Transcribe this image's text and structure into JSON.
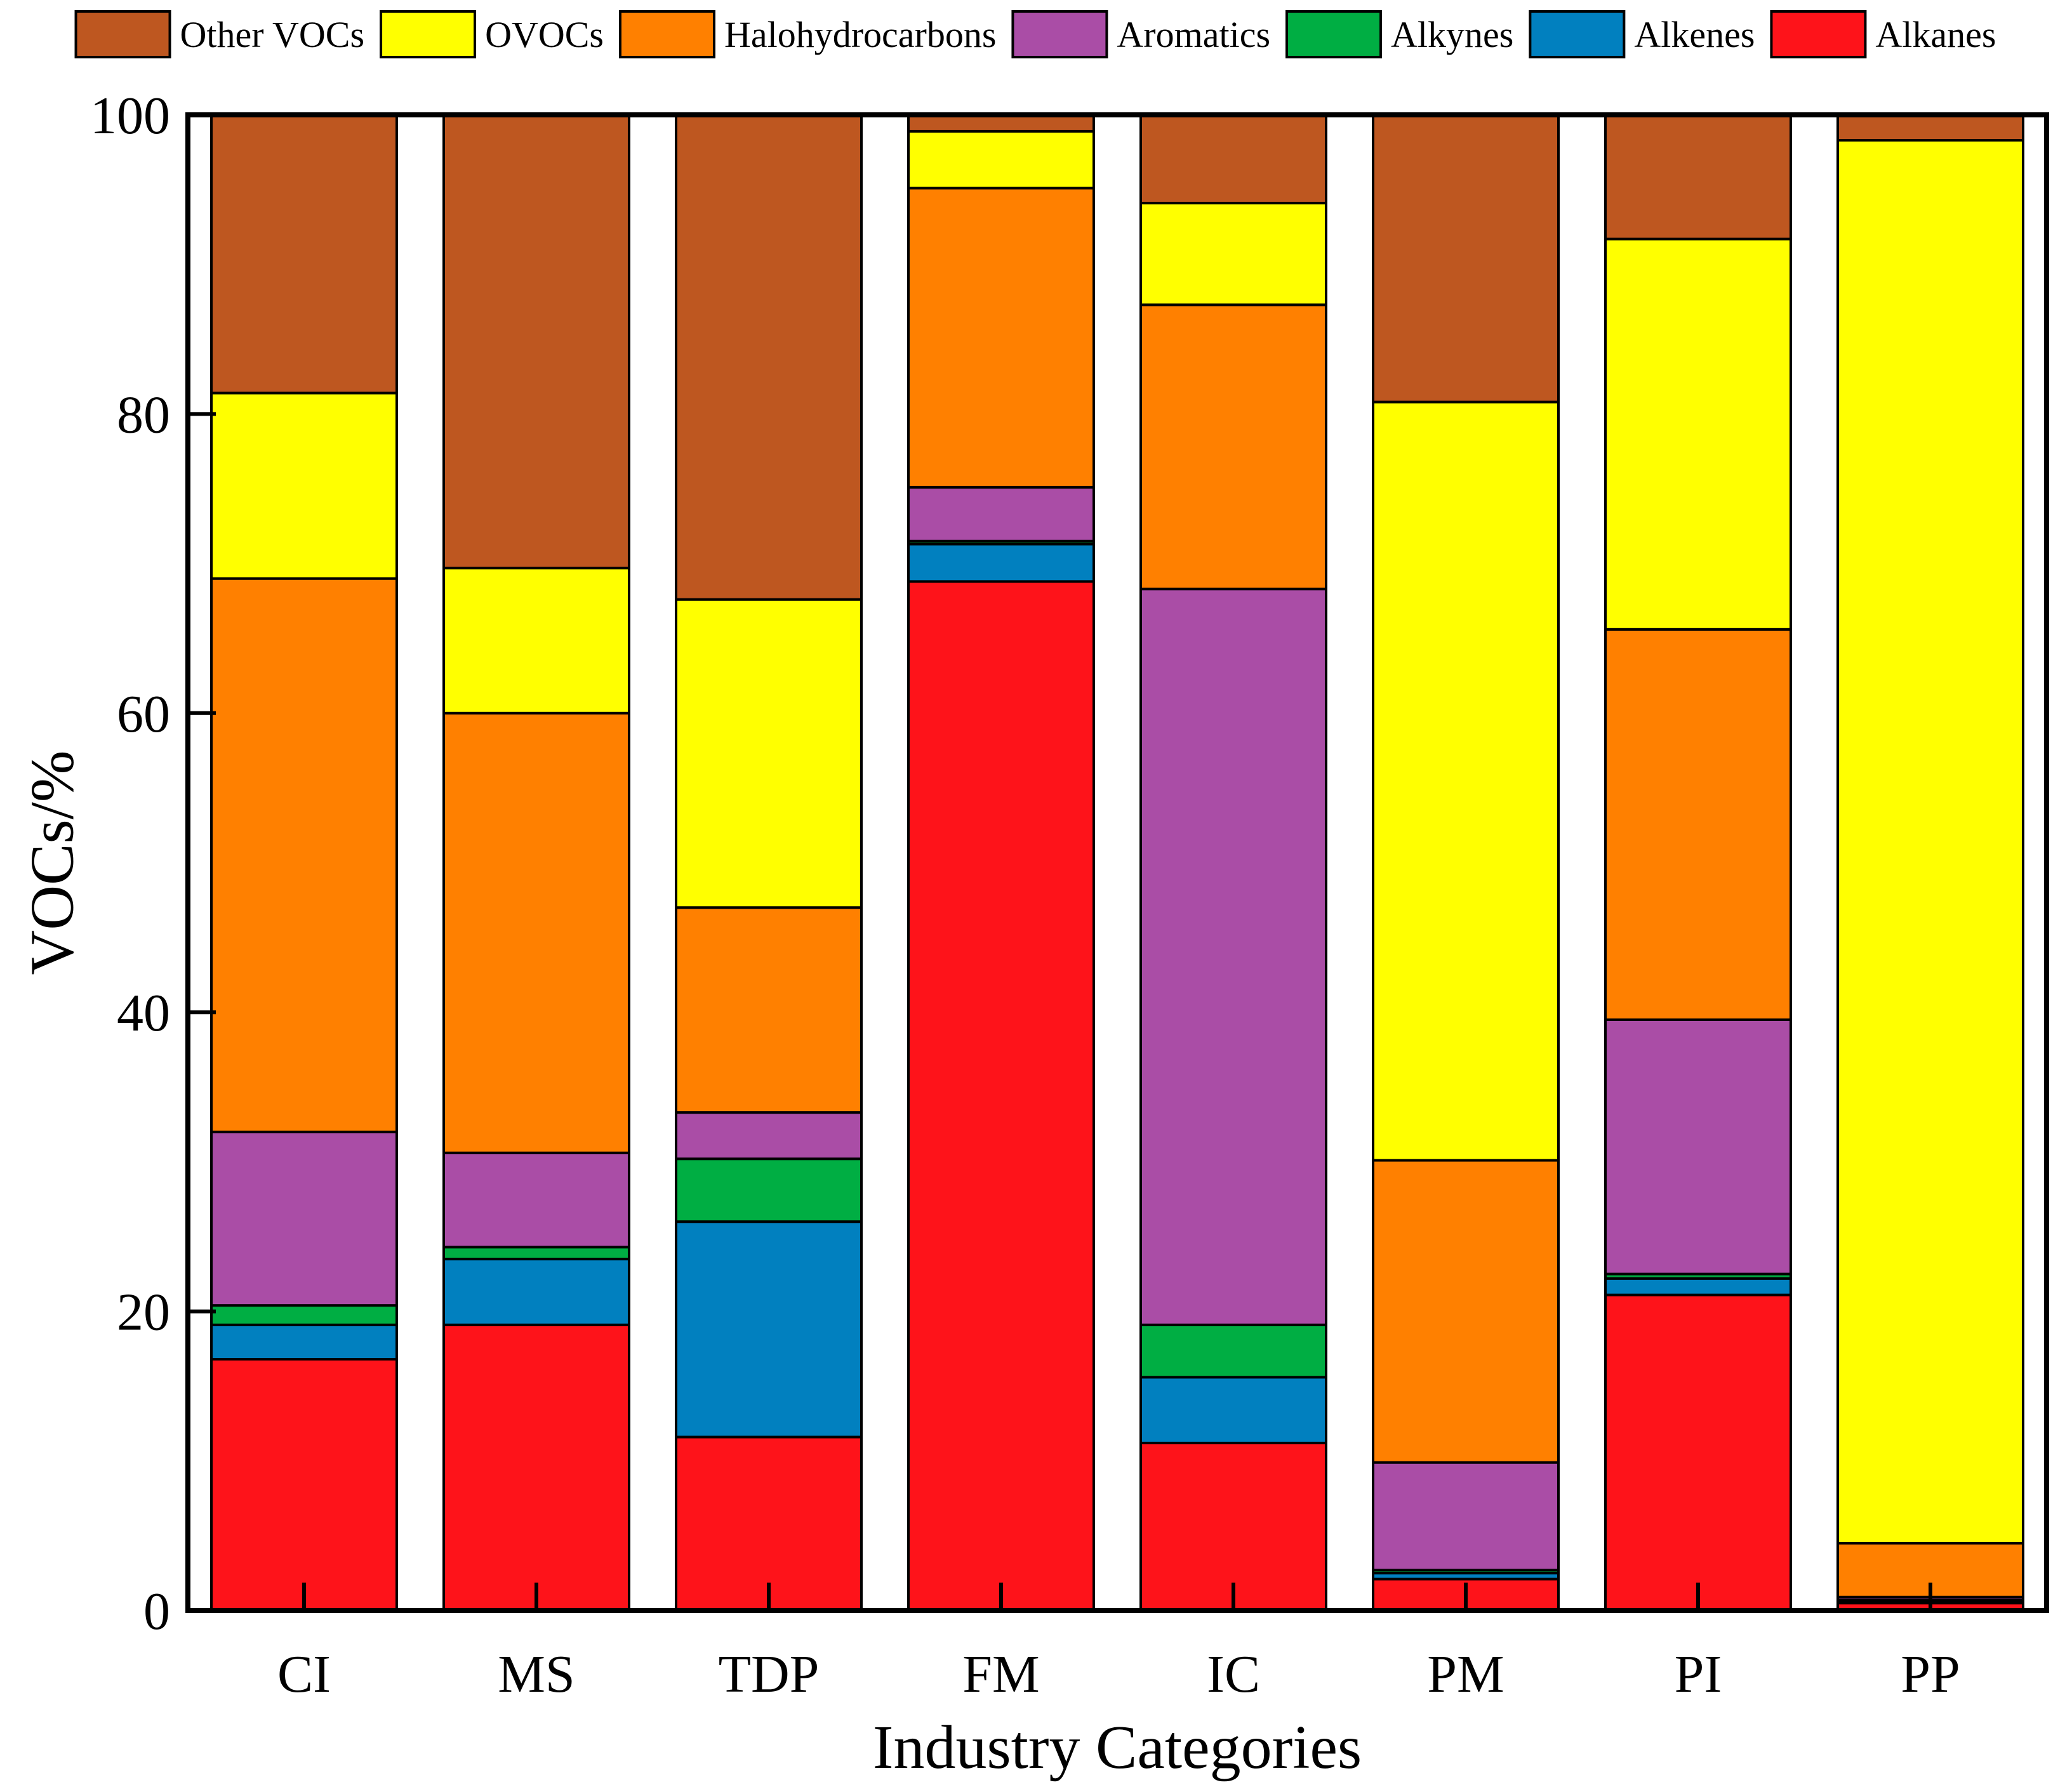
{
  "chart_data": {
    "type": "bar",
    "stacked": true,
    "title": "",
    "xlabel": "Industry Categories",
    "ylabel": "VOCs/%",
    "ylim": [
      0,
      100
    ],
    "yticks": [
      0,
      20,
      40,
      60,
      80,
      100
    ],
    "grid": false,
    "legend_position": "top",
    "categories": [
      "CI",
      "MS",
      "TDP",
      "FM",
      "IC",
      "PM",
      "PI",
      "PP"
    ],
    "series": [
      {
        "name": "Alkanes",
        "color": "#fe131a",
        "values": [
          16.8,
          19.1,
          11.6,
          68.8,
          11.2,
          2.1,
          21.1,
          0.5
        ]
      },
      {
        "name": "Alkenes",
        "color": "#0180bf",
        "values": [
          2.3,
          4.4,
          14.4,
          2.5,
          4.4,
          0.4,
          1.1,
          0.1
        ]
      },
      {
        "name": "Alkynes",
        "color": "#00ae43",
        "values": [
          1.3,
          0.8,
          4.2,
          0.2,
          3.5,
          0.2,
          0.3,
          0.1
        ]
      },
      {
        "name": "Aromatics",
        "color": "#aa4da6",
        "values": [
          11.6,
          6.3,
          3.1,
          3.6,
          49.2,
          7.2,
          17.0,
          0.2
        ]
      },
      {
        "name": "Halohydrocarbons",
        "color": "#ff8000",
        "values": [
          37.0,
          29.4,
          13.7,
          20.0,
          19.0,
          20.2,
          26.1,
          3.6
        ]
      },
      {
        "name": "OVOCs",
        "color": "#ffff00",
        "values": [
          12.4,
          9.7,
          20.6,
          3.8,
          6.8,
          50.7,
          26.1,
          93.8
        ]
      },
      {
        "name": "Other VOCs",
        "color": "#be5720",
        "values": [
          18.6,
          30.3,
          32.4,
          1.1,
          5.9,
          19.2,
          8.3,
          1.7
        ]
      }
    ],
    "legend_order": [
      "Other VOCs",
      "OVOCs",
      "Halohydrocarbons",
      "Aromatics",
      "Alkynes",
      "Alkenes",
      "Alkanes"
    ]
  }
}
